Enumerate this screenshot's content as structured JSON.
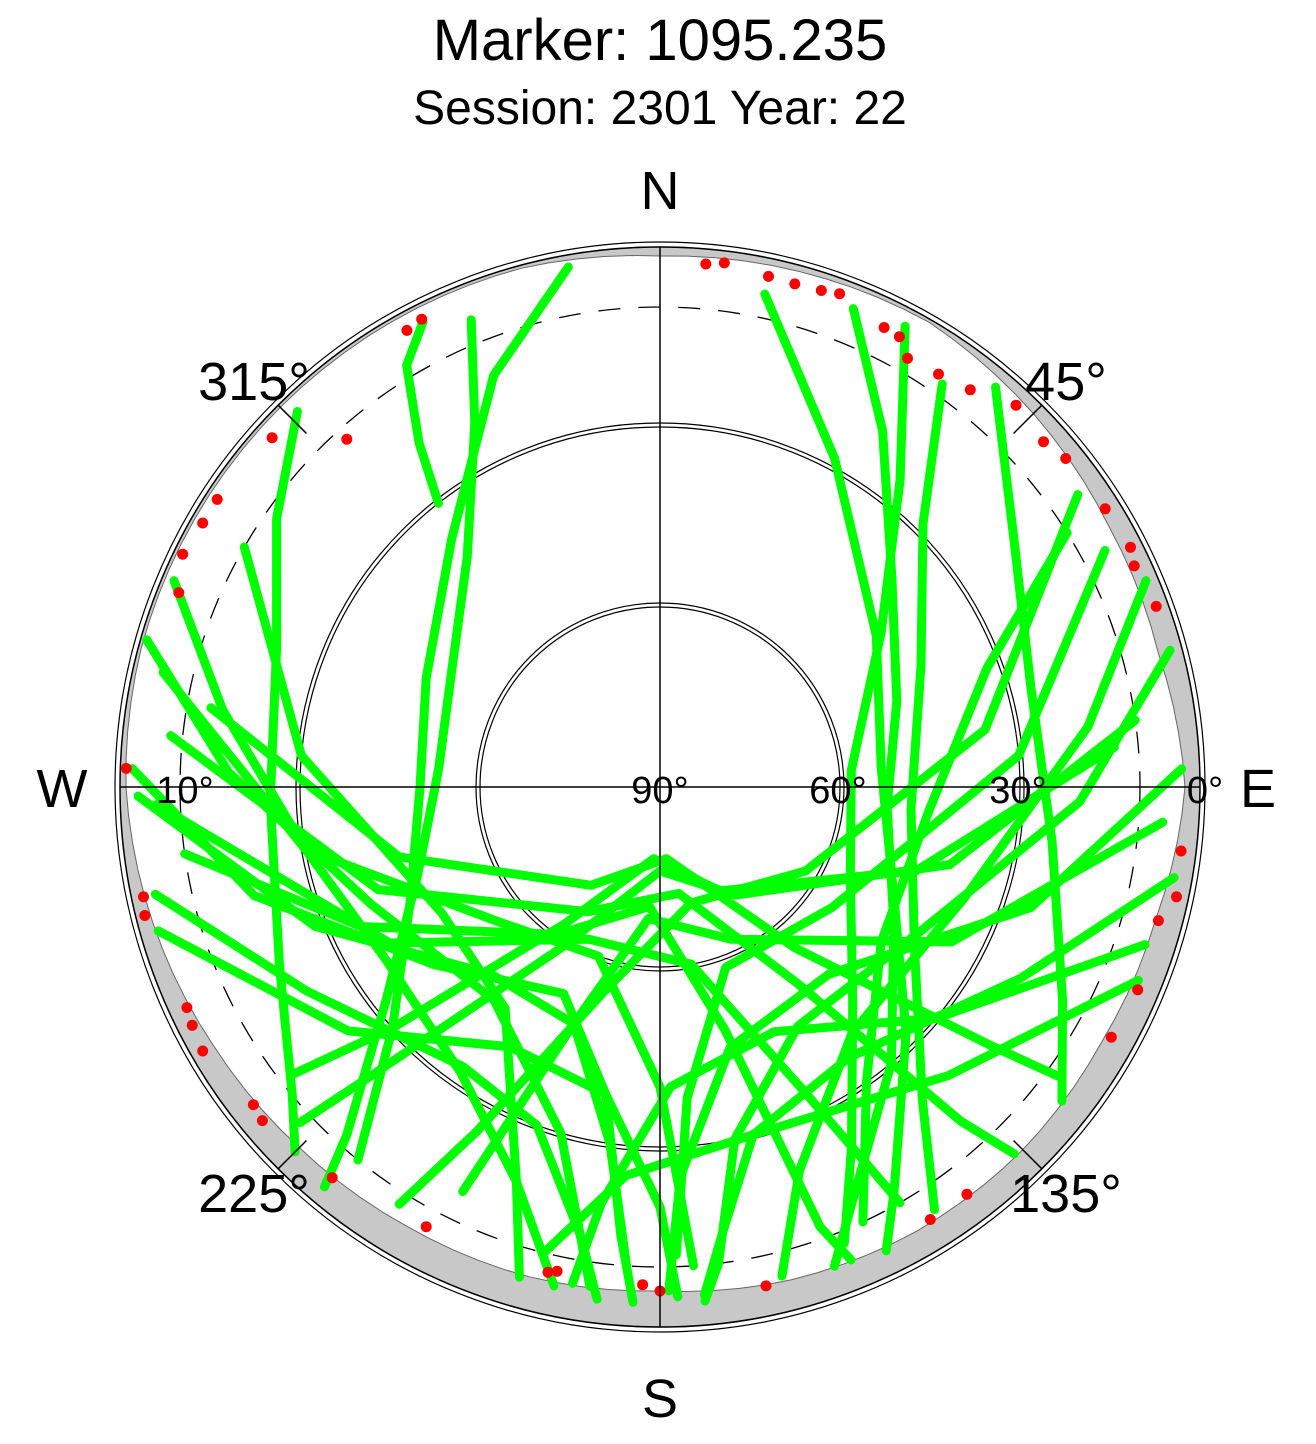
{
  "title": "Marker: 1095.235",
  "subtitle": "Session: 2301 Year: 22",
  "chart_data": {
    "type": "scatter",
    "projection": "polar-skyplot",
    "radial_axis": {
      "quantity": "elevation",
      "range": [
        0,
        90
      ],
      "tick_labels": [
        "0°",
        "10°",
        "30°",
        "60°",
        "90°"
      ]
    },
    "angular_axis": {
      "quantity": "azimuth",
      "direction_labels": {
        "north": "N",
        "east": "E",
        "south": "S",
        "west": "W"
      },
      "tick_labels": [
        {
          "azimuth": 45,
          "label": "45°"
        },
        {
          "azimuth": 135,
          "label": "135°"
        },
        {
          "azimuth": 225,
          "label": "225°"
        },
        {
          "azimuth": 315,
          "label": "315°"
        }
      ]
    },
    "elevation_circles": [
      30,
      60
    ],
    "dashed_elevation_circle": 10,
    "colors": {
      "track": "#00ff00",
      "flagged": "#ff0000",
      "obstruction": "#c8c8c8",
      "axes": "#000000"
    },
    "obstruction_mask": [
      [
        0,
        1.5
      ],
      [
        15,
        1.0
      ],
      [
        30,
        0.5
      ],
      [
        45,
        2.0
      ],
      [
        60,
        3.5
      ],
      [
        75,
        4.0
      ],
      [
        90,
        2.5
      ],
      [
        105,
        4.5
      ],
      [
        120,
        5.0
      ],
      [
        135,
        4.5
      ],
      [
        150,
        4.5
      ],
      [
        165,
        5.0
      ],
      [
        180,
        6.0
      ],
      [
        195,
        5.5
      ],
      [
        210,
        5.5
      ],
      [
        225,
        5.0
      ],
      [
        240,
        4.0
      ],
      [
        255,
        2.5
      ],
      [
        270,
        1.0
      ],
      [
        285,
        0.5
      ],
      [
        300,
        0.5
      ],
      [
        315,
        0.5
      ],
      [
        330,
        0.5
      ],
      [
        345,
        0.5
      ],
      [
        360,
        1.5
      ]
    ],
    "series": [
      {
        "color": "track",
        "points": [
          [
            322,
            30
          ],
          [
            325,
            20
          ],
          [
            329,
            8
          ],
          [
            333,
            3
          ]
        ]
      },
      {
        "color": "track",
        "points": [
          [
            338,
            6
          ],
          [
            333,
            22
          ],
          [
            320,
            40
          ],
          [
            300,
            50
          ],
          [
            275,
            53
          ],
          [
            250,
            47
          ],
          [
            232,
            32
          ],
          [
            222,
            12
          ],
          [
            220,
            3
          ]
        ]
      },
      {
        "color": "track",
        "points": [
          [
            350,
            2
          ],
          [
            338,
            16
          ],
          [
            320,
            36
          ],
          [
            295,
            47
          ],
          [
            270,
            50
          ],
          [
            245,
            44
          ],
          [
            228,
            30
          ],
          [
            219,
            10
          ]
        ]
      },
      {
        "color": "track",
        "points": [
          [
            316,
            3
          ],
          [
            305,
            12
          ],
          [
            290,
            22
          ],
          [
            268,
            25
          ],
          [
            245,
            20
          ],
          [
            230,
            10
          ],
          [
            225,
            4
          ]
        ]
      },
      {
        "color": "track",
        "points": [
          [
            293,
            2
          ],
          [
            280,
            16
          ],
          [
            260,
            30
          ],
          [
            238,
            36
          ],
          [
            215,
            32
          ],
          [
            200,
            20
          ],
          [
            192,
            5
          ]
        ]
      },
      {
        "color": "track",
        "points": [
          [
            286,
            1
          ],
          [
            272,
            18
          ],
          [
            248,
            38
          ],
          [
            218,
            45
          ],
          [
            196,
            30
          ],
          [
            188,
            6
          ]
        ]
      },
      {
        "color": "track",
        "points": [
          [
            272,
            2
          ],
          [
            255,
            20
          ],
          [
            232,
            42
          ],
          [
            205,
            52
          ],
          [
            190,
            38
          ],
          [
            185,
            15
          ],
          [
            183,
            4
          ]
        ]
      },
      {
        "color": "track",
        "points": [
          [
            283,
            5
          ],
          [
            260,
            30
          ],
          [
            230,
            55
          ],
          [
            200,
            60
          ],
          [
            180,
            40
          ],
          [
            176,
            10
          ]
        ]
      },
      {
        "color": "track",
        "points": [
          [
            300,
            10
          ],
          [
            275,
            30
          ],
          [
            240,
            48
          ],
          [
            215,
            45
          ],
          [
            200,
            20
          ],
          [
            196,
            5
          ]
        ]
      },
      {
        "color": "track",
        "points": [
          [
            262,
            10
          ],
          [
            245,
            35
          ],
          [
            215,
            60
          ],
          [
            185,
            70
          ],
          [
            165,
            48
          ],
          [
            160,
            12
          ],
          [
            158,
            5
          ]
        ]
      },
      {
        "color": "track",
        "points": [
          [
            258,
            4
          ],
          [
            240,
            22
          ],
          [
            215,
            33
          ],
          [
            200,
            30
          ],
          [
            190,
            14
          ],
          [
            187,
            4
          ]
        ]
      },
      {
        "color": "track",
        "points": [
          [
            269,
            3
          ],
          [
            248,
            28
          ],
          [
            222,
            48
          ],
          [
            200,
            48
          ],
          [
            188,
            30
          ],
          [
            184,
            10
          ]
        ]
      },
      {
        "color": "track",
        "points": [
          [
            254,
            3
          ],
          [
            232,
            24
          ],
          [
            210,
            40
          ],
          [
            190,
            38
          ],
          [
            180,
            20
          ],
          [
            178,
            5
          ]
        ]
      },
      {
        "color": "track",
        "points": [
          [
            268,
            6
          ],
          [
            240,
            38
          ],
          [
            205,
            62
          ],
          [
            170,
            60
          ],
          [
            155,
            35
          ],
          [
            150,
            10
          ]
        ]
      },
      {
        "color": "track",
        "points": [
          [
            276,
            8
          ],
          [
            250,
            40
          ],
          [
            210,
            66
          ],
          [
            170,
            72
          ],
          [
            145,
            50
          ],
          [
            138,
            15
          ],
          [
            136,
            5
          ]
        ]
      },
      {
        "color": "track",
        "points": [
          [
            280,
            14
          ],
          [
            255,
            45
          ],
          [
            215,
            70
          ],
          [
            175,
            78
          ],
          [
            140,
            55
          ],
          [
            128,
            20
          ],
          [
            126,
            8
          ]
        ]
      },
      {
        "color": "track",
        "points": [
          [
            22,
            4
          ],
          [
            32,
            20
          ],
          [
            48,
            38
          ],
          [
            70,
            48
          ],
          [
            95,
            52
          ],
          [
            120,
            45
          ],
          [
            140,
            30
          ],
          [
            155,
            14
          ],
          [
            160,
            5
          ]
        ]
      },
      {
        "color": "track",
        "points": [
          [
            12,
            6
          ],
          [
            28,
            28
          ],
          [
            55,
            46
          ],
          [
            85,
            53
          ],
          [
            115,
            47
          ],
          [
            135,
            32
          ],
          [
            150,
            12
          ],
          [
            154,
            4
          ]
        ]
      },
      {
        "color": "track",
        "points": [
          [
            40,
            3
          ],
          [
            55,
            18
          ],
          [
            75,
            26
          ],
          [
            98,
            24
          ],
          [
            118,
            14
          ],
          [
            128,
            5
          ]
        ]
      },
      {
        "color": "track",
        "points": [
          [
            67,
            2
          ],
          [
            82,
            18
          ],
          [
            110,
            36
          ],
          [
            142,
            38
          ],
          [
            160,
            22
          ],
          [
            166,
            6
          ]
        ]
      },
      {
        "color": "track",
        "points": [
          [
            75,
            2
          ],
          [
            92,
            20
          ],
          [
            118,
            40
          ],
          [
            150,
            44
          ],
          [
            168,
            30
          ],
          [
            173,
            10
          ],
          [
            175,
            4
          ]
        ]
      },
      {
        "color": "track",
        "points": [
          [
            88,
            3
          ],
          [
            108,
            25
          ],
          [
            138,
            48
          ],
          [
            165,
            45
          ],
          [
            177,
            25
          ],
          [
            179,
            6
          ]
        ]
      },
      {
        "color": "track",
        "points": [
          [
            62,
            6
          ],
          [
            85,
            30
          ],
          [
            125,
            55
          ],
          [
            160,
            58
          ],
          [
            175,
            38
          ],
          [
            178,
            12
          ]
        ]
      },
      {
        "color": "track",
        "points": [
          [
            100,
            3
          ],
          [
            118,
            22
          ],
          [
            145,
            35
          ],
          [
            165,
            30
          ],
          [
            172,
            15
          ],
          [
            175,
            5
          ]
        ]
      },
      {
        "color": "track",
        "points": [
          [
            94,
            6
          ],
          [
            118,
            35
          ],
          [
            155,
            62
          ],
          [
            185,
            68
          ],
          [
            200,
            48
          ],
          [
            206,
            15
          ]
        ]
      },
      {
        "color": "track",
        "points": [
          [
            55,
            5
          ],
          [
            80,
            35
          ],
          [
            120,
            62
          ],
          [
            165,
            70
          ],
          [
            195,
            55
          ],
          [
            208,
            25
          ],
          [
            212,
            8
          ]
        ]
      },
      {
        "color": "track",
        "points": [
          [
            82,
            10
          ],
          [
            105,
            40
          ],
          [
            145,
            68
          ],
          [
            180,
            76
          ],
          [
            212,
            58
          ],
          [
            225,
            22
          ],
          [
            227,
            8
          ]
        ]
      },
      {
        "color": "track",
        "points": [
          [
            85,
            14
          ],
          [
            108,
            45
          ],
          [
            150,
            70
          ],
          [
            185,
            78
          ],
          [
            215,
            62
          ],
          [
            228,
            30
          ],
          [
            232,
            12
          ]
        ]
      },
      {
        "color": "track",
        "points": [
          [
            108,
            5
          ],
          [
            130,
            30
          ],
          [
            155,
            45
          ],
          [
            178,
            40
          ],
          [
            188,
            20
          ],
          [
            190,
            6
          ]
        ]
      },
      {
        "color": "track",
        "points": [
          [
            28,
            3
          ],
          [
            38,
            25
          ],
          [
            55,
            45
          ],
          [
            85,
            58
          ],
          [
            115,
            55
          ],
          [
            138,
            42
          ],
          [
            152,
            22
          ],
          [
            158,
            8
          ]
        ]
      },
      {
        "color": "track",
        "points": [
          [
            58,
            10
          ],
          [
            70,
            32
          ],
          [
            95,
            45
          ],
          [
            125,
            45
          ],
          [
            145,
            30
          ],
          [
            155,
            10
          ]
        ]
      },
      {
        "color": "track",
        "points": [
          [
            35,
            8
          ],
          [
            45,
            28
          ],
          [
            65,
            42
          ],
          [
            95,
            48
          ],
          [
            122,
            40
          ],
          [
            140,
            22
          ],
          [
            147,
            6
          ]
        ]
      },
      {
        "color": "track",
        "points": [
          [
            112,
            4
          ],
          [
            135,
            22
          ],
          [
            165,
            30
          ],
          [
            185,
            25
          ],
          [
            194,
            10
          ]
        ]
      },
      {
        "color": "flagged",
        "points": [
          [
            333,
            2.5
          ],
          [
            331,
            3
          ],
          [
            318,
            12
          ],
          [
            312,
            3
          ],
          [
            303,
            2
          ],
          [
            296,
            1.5
          ],
          [
            300,
            2
          ],
          [
            292,
            3.5
          ],
          [
            272,
            1
          ],
          [
            258,
            2
          ],
          [
            256,
            1.5
          ],
          [
            245,
            3
          ],
          [
            243,
            2.5
          ],
          [
            240,
            2
          ],
          [
            232,
            4
          ],
          [
            230,
            3.5
          ],
          [
            220,
            5
          ],
          [
            208,
            7
          ],
          [
            193,
            7
          ],
          [
            192,
            7.5
          ],
          [
            182,
            7
          ],
          [
            180,
            6
          ],
          [
            168,
            5
          ],
          [
            148,
            5
          ],
          [
            143,
            5
          ],
          [
            119,
            4
          ],
          [
            113,
            3.5
          ],
          [
            102,
            2
          ],
          [
            105,
            4
          ],
          [
            97,
            2.5
          ],
          [
            70,
            2
          ],
          [
            65,
            2.8
          ],
          [
            63,
            2
          ],
          [
            58,
            2.5
          ],
          [
            51,
            3
          ],
          [
            48,
            4
          ],
          [
            43,
            3
          ],
          [
            38,
            6
          ],
          [
            34,
            7
          ],
          [
            30,
            7.5
          ],
          [
            28,
            5
          ],
          [
            26,
            4.8
          ],
          [
            20,
            2.5
          ],
          [
            18,
            3
          ],
          [
            15,
            3.2
          ],
          [
            12,
            3
          ],
          [
            7,
            2
          ],
          [
            5,
            2.5
          ]
        ]
      }
    ]
  }
}
